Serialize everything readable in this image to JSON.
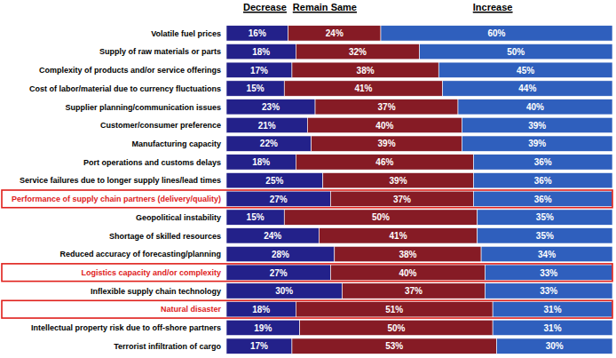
{
  "chart_data": {
    "type": "bar",
    "orientation": "horizontal",
    "stacked": true,
    "data_labels": true,
    "tick_labels": false,
    "legend": "top",
    "xlim": [
      0,
      100
    ],
    "categories": [
      "Volatile fuel prices",
      "Supply of raw materials or parts",
      "Complexity of products and/or service offerings",
      "Cost of labor/material due to currency fluctuations",
      "Supplier planning/communication issues",
      "Customer/consumer preference",
      "Manufacturing capacity",
      "Port operations and customs delays",
      "Service failures due to longer supply lines/lead times",
      "Performance of supply chain partners (delivery/quality)",
      "Geopolitical instability",
      "Shortage of skilled resources",
      "Reduced accuracy of forecasting/planning",
      "Logistics capacity and/or complexity",
      "Inflexible supply chain technology",
      "Natural disaster",
      "Intellectual property risk due to off-shore partners",
      "Terrorist infiltration of cargo"
    ],
    "highlighted": [
      9,
      13,
      15
    ],
    "series": [
      {
        "name": "Decrease",
        "color": "#23218a",
        "values": [
          16,
          18,
          17,
          15,
          23,
          21,
          22,
          18,
          25,
          27,
          15,
          24,
          28,
          27,
          30,
          18,
          19,
          17
        ],
        "value_labels": [
          "16%",
          "18%",
          "17%",
          "15%",
          "23%",
          "21%",
          "22%",
          "18%",
          "25%",
          "27%",
          "15%",
          "24%",
          "28%",
          "27%",
          "30%",
          "18%",
          "19%",
          "17%"
        ]
      },
      {
        "name": "Remain Same",
        "color": "#861b25",
        "values": [
          24,
          32,
          38,
          41,
          37,
          40,
          39,
          46,
          39,
          37,
          50,
          41,
          38,
          40,
          37,
          51,
          50,
          53
        ],
        "value_labels": [
          "24%",
          "32%",
          "38%",
          "41%",
          "37%",
          "40%",
          "39%",
          "46%",
          "39%",
          "37%",
          "50%",
          "41%",
          "38%",
          "40%",
          "37%",
          "51%",
          "50%",
          "53%"
        ]
      },
      {
        "name": "Increase",
        "color": "#2f5fbd",
        "values": [
          60,
          50,
          45,
          44,
          40,
          39,
          39,
          36,
          36,
          36,
          35,
          35,
          34,
          33,
          33,
          31,
          31,
          30
        ],
        "value_labels": [
          "60%",
          "50%",
          "45%",
          "44%",
          "40%",
          "39%",
          "39%",
          "36%",
          "36%",
          "36%",
          "35%",
          "35%",
          "34%",
          "33%",
          "33%",
          "31%",
          "31%",
          "30%"
        ]
      }
    ]
  }
}
